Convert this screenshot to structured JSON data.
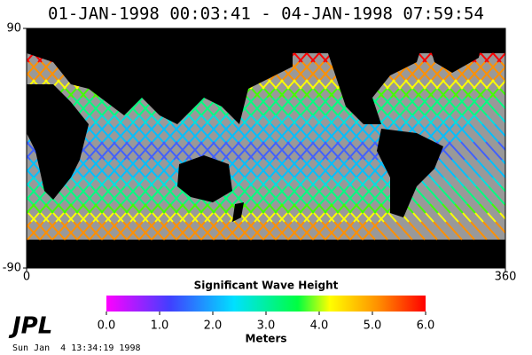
{
  "title": "01-JAN-1998 00:03:41 - 04-JAN-1998 07:59:54",
  "map": {
    "xlim": [
      0,
      360
    ],
    "ylim": [
      -90,
      90
    ],
    "xticks": [
      0,
      360
    ],
    "yticks": [
      -90,
      90
    ]
  },
  "colorbar": {
    "title": "Significant Wave Height",
    "unit": "Meters",
    "range": [
      0,
      6
    ],
    "ticks": [
      {
        "value": 0,
        "label": "0.0"
      },
      {
        "value": 1,
        "label": "1.0"
      },
      {
        "value": 2,
        "label": "2.0"
      },
      {
        "value": 3,
        "label": "3.0"
      },
      {
        "value": 4,
        "label": "4.0"
      },
      {
        "value": 5,
        "label": "5.0"
      },
      {
        "value": 6,
        "label": "6.0"
      }
    ]
  },
  "footer": {
    "logo": "JPL",
    "timestamp": "Sun Jan  4 13:34:19 1998"
  }
}
